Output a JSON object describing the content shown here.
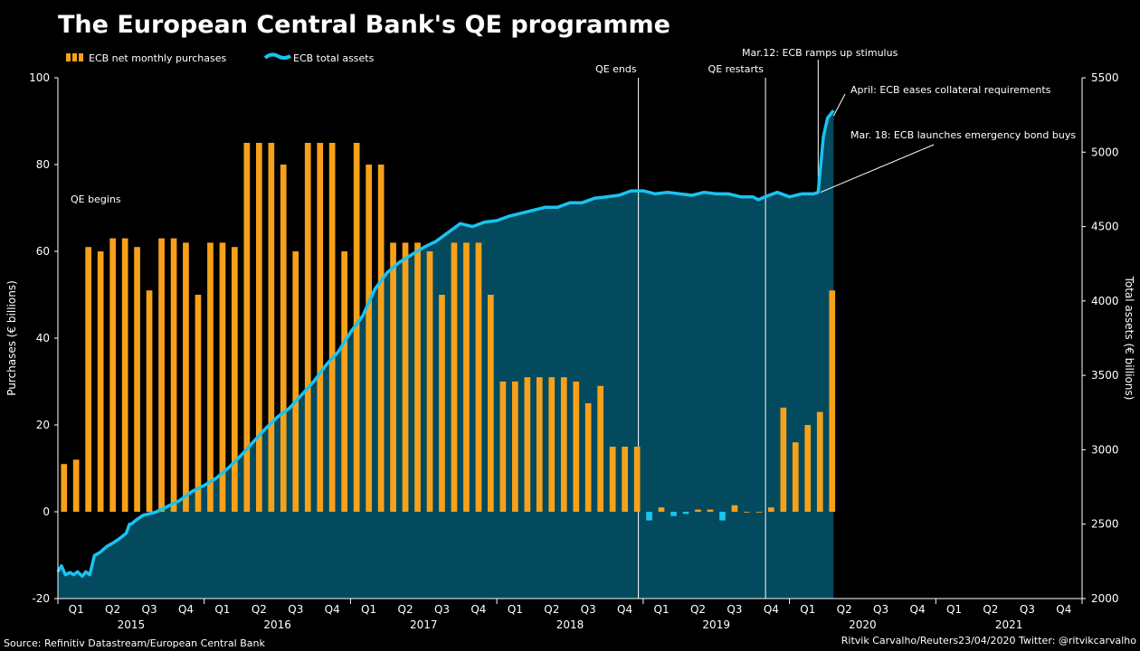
{
  "chart_data": {
    "type": "bar+area",
    "title": "The European Central Bank's QE programme",
    "legend": {
      "placement": "top-left",
      "items": [
        {
          "name": "ECB net monthly purchases",
          "color": "#f7a11a",
          "kind": "bar"
        },
        {
          "name": "ECB total assets",
          "color": "#19c3f0",
          "kind": "line"
        }
      ]
    },
    "y_left": {
      "label": "Purchases (€ billions)",
      "range": [
        -20,
        100
      ],
      "ticks": [
        -20,
        0,
        20,
        40,
        60,
        80,
        100
      ]
    },
    "y_right": {
      "label": "Total assets (€ billions)",
      "range": [
        2000,
        5500
      ],
      "ticks": [
        2000,
        2500,
        3000,
        3500,
        4000,
        4500,
        5000,
        5500
      ]
    },
    "x_axis": {
      "start": "2015-01",
      "end": "2021-12",
      "quarter_labels": [
        "Q1",
        "Q2",
        "Q3",
        "Q4",
        "Q1",
        "Q2",
        "Q3",
        "Q4",
        "Q1",
        "Q2",
        "Q3",
        "Q4",
        "Q1",
        "Q2",
        "Q3",
        "Q4",
        "Q1",
        "Q2",
        "Q3",
        "Q4",
        "Q1",
        "Q2",
        "Q3",
        "Q4",
        "Q1",
        "Q2",
        "Q3",
        "Q4"
      ],
      "year_labels": [
        "2015",
        "2016",
        "2017",
        "2018",
        "2019",
        "2020",
        "2021"
      ]
    },
    "grid": false,
    "purchases_series": {
      "name": "ECB net monthly purchases",
      "unit": "€ billions",
      "months": [
        "2015-01",
        "2015-02",
        "2015-03",
        "2015-04",
        "2015-05",
        "2015-06",
        "2015-07",
        "2015-08",
        "2015-09",
        "2015-10",
        "2015-11",
        "2015-12",
        "2016-01",
        "2016-02",
        "2016-03",
        "2016-04",
        "2016-05",
        "2016-06",
        "2016-07",
        "2016-08",
        "2016-09",
        "2016-10",
        "2016-11",
        "2016-12",
        "2017-01",
        "2017-02",
        "2017-03",
        "2017-04",
        "2017-05",
        "2017-06",
        "2017-07",
        "2017-08",
        "2017-09",
        "2017-10",
        "2017-11",
        "2017-12",
        "2018-01",
        "2018-02",
        "2018-03",
        "2018-04",
        "2018-05",
        "2018-06",
        "2018-07",
        "2018-08",
        "2018-09",
        "2018-10",
        "2018-11",
        "2018-12",
        "2019-01",
        "2019-02",
        "2019-03",
        "2019-04",
        "2019-05",
        "2019-06",
        "2019-07",
        "2019-08",
        "2019-09",
        "2019-10",
        "2019-11",
        "2019-12",
        "2020-01",
        "2020-02",
        "2020-03",
        "2020-04"
      ],
      "values": [
        11,
        12,
        61,
        60,
        63,
        63,
        61,
        51,
        63,
        63,
        62,
        50,
        62,
        62,
        61,
        85,
        85,
        85,
        80,
        60,
        85,
        85,
        85,
        60,
        85,
        80,
        80,
        62,
        62,
        62,
        60,
        50,
        62,
        62,
        62,
        50,
        30,
        30,
        31,
        31,
        31,
        31,
        30,
        25,
        29,
        15,
        15,
        15,
        -2,
        1,
        -1,
        -0.5,
        0.5,
        0.5,
        -2,
        1.5,
        0,
        0,
        1,
        24,
        16,
        20,
        23,
        51
      ]
    },
    "assets_series": {
      "name": "ECB total assets",
      "unit": "€ billions",
      "dates": [
        "2015-01-01",
        "2015-01-10",
        "2015-01-20",
        "2015-02-01",
        "2015-02-10",
        "2015-02-20",
        "2015-03-01",
        "2015-03-10",
        "2015-03-20",
        "2015-04-01",
        "2015-04-15",
        "2015-05-01",
        "2015-05-15",
        "2015-06-01",
        "2015-06-20",
        "2015-06-28",
        "2015-07-01",
        "2015-07-15",
        "2015-08-01",
        "2015-09-01",
        "2015-10-01",
        "2015-11-01",
        "2015-12-01",
        "2016-01-01",
        "2016-02-01",
        "2016-03-01",
        "2016-04-01",
        "2016-05-01",
        "2016-06-01",
        "2016-07-01",
        "2016-08-01",
        "2016-09-01",
        "2016-10-01",
        "2016-11-01",
        "2016-12-01",
        "2017-01-01",
        "2017-02-01",
        "2017-03-01",
        "2017-04-01",
        "2017-05-01",
        "2017-06-01",
        "2017-07-01",
        "2017-08-01",
        "2017-09-01",
        "2017-10-01",
        "2017-11-01",
        "2017-12-01",
        "2018-01-01",
        "2018-02-01",
        "2018-03-01",
        "2018-04-01",
        "2018-05-01",
        "2018-06-01",
        "2018-07-01",
        "2018-08-01",
        "2018-09-01",
        "2018-10-01",
        "2018-11-01",
        "2018-12-01",
        "2019-01-01",
        "2019-02-01",
        "2019-03-01",
        "2019-04-01",
        "2019-05-01",
        "2019-06-01",
        "2019-07-01",
        "2019-08-01",
        "2019-09-01",
        "2019-10-01",
        "2019-10-15",
        "2019-11-01",
        "2019-12-01",
        "2020-01-01",
        "2020-02-01",
        "2020-03-01",
        "2020-03-12",
        "2020-03-25",
        "2020-04-05",
        "2020-04-20"
      ],
      "values": [
        2180,
        2220,
        2160,
        2175,
        2160,
        2180,
        2150,
        2180,
        2160,
        2290,
        2310,
        2350,
        2370,
        2400,
        2440,
        2500,
        2500,
        2530,
        2560,
        2580,
        2620,
        2660,
        2720,
        2760,
        2810,
        2880,
        2960,
        3050,
        3140,
        3220,
        3280,
        3370,
        3460,
        3570,
        3660,
        3790,
        3900,
        4080,
        4190,
        4260,
        4310,
        4360,
        4400,
        4460,
        4520,
        4500,
        4530,
        4540,
        4570,
        4590,
        4610,
        4630,
        4630,
        4660,
        4660,
        4690,
        4700,
        4710,
        4740,
        4740,
        4720,
        4730,
        4720,
        4710,
        4730,
        4720,
        4720,
        4700,
        4700,
        4680,
        4700,
        4730,
        4700,
        4720,
        4720,
        4730,
        5100,
        5230,
        5280
      ]
    },
    "annotations": [
      {
        "text": "QE begins",
        "date": "2015-03"
      },
      {
        "text": "QE ends",
        "date": "2018-12"
      },
      {
        "text": "QE restarts",
        "date": "2019-11"
      },
      {
        "text": "Mar.12: ECB ramps up stimulus",
        "date": "2020-03-12"
      },
      {
        "text": "April: ECB eases collateral requirements",
        "date": "2020-04"
      },
      {
        "text": "Mar. 18: ECB launches emergency bond buys",
        "date": "2020-03-18"
      }
    ]
  },
  "footer": {
    "source": "Source: Refinitiv Datastream/European Central Bank",
    "credit": "Ritvik Carvalho/Reuters23/04/2020 Twitter: @ritvikcarvalho"
  }
}
